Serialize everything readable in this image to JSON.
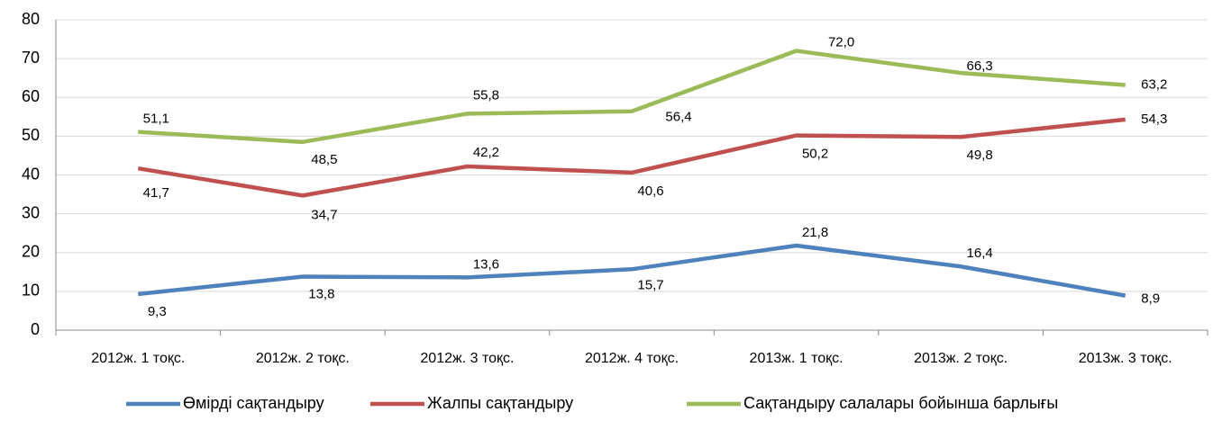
{
  "chart_data": {
    "type": "line",
    "categories": [
      "2012ж. 1 тоқс.",
      "2012ж. 2 тоқс.",
      "2012ж. 3 тоқс.",
      "2012ж. 4 тоқс.",
      "2013ж. 1 тоқс.",
      "2013ж. 2 тоқс.",
      "2013ж. 3 тоқс."
    ],
    "series": [
      {
        "name": "Өмірді сақтандыру",
        "color": "#4f81bd",
        "values": [
          9.3,
          13.8,
          13.6,
          15.7,
          21.8,
          16.4,
          8.9
        ],
        "value_labels": [
          "9,3",
          "13,8",
          "13,6",
          "15,7",
          "21,8",
          "16,4",
          "8,9"
        ]
      },
      {
        "name": "Жалпы сақтандыру",
        "color": "#c0504d",
        "values": [
          41.7,
          34.7,
          42.2,
          40.6,
          50.2,
          49.8,
          54.3
        ],
        "value_labels": [
          "41,7",
          "34,7",
          "42,2",
          "40,6",
          "50,2",
          "49,8",
          "54,3"
        ]
      },
      {
        "name": "Сақтандыру салалары бойынша барлығы",
        "color": "#9bbb59",
        "values": [
          51.1,
          48.5,
          55.8,
          56.4,
          72.0,
          66.3,
          63.2
        ],
        "value_labels": [
          "51,1",
          "48,5",
          "55,8",
          "56,4",
          "72,0",
          "66,3",
          "63,2"
        ]
      }
    ],
    "ylim": [
      0,
      80
    ],
    "yticks": [
      0,
      10,
      20,
      30,
      40,
      50,
      60,
      70,
      80
    ],
    "grid": true,
    "legend": "bottom"
  }
}
